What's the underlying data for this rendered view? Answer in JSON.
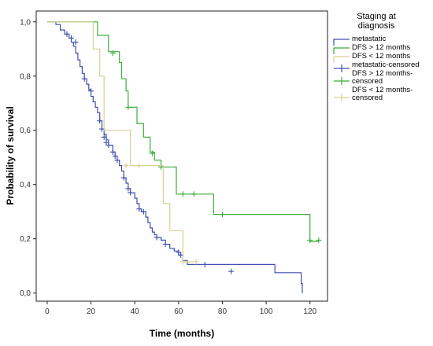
{
  "chart_data": {
    "type": "line",
    "subtype": "kaplan-meier step",
    "xlabel": "Time (months)",
    "ylabel": "Probability of survival",
    "xlim": [
      -5,
      128
    ],
    "ylim": [
      -0.03,
      1.04
    ],
    "x_ticks": [
      0,
      20,
      40,
      60,
      80,
      100,
      120
    ],
    "y_ticks": [
      0.0,
      0.2,
      0.4,
      0.6,
      0.8,
      1.0
    ],
    "y_tick_labels": [
      "0,0",
      "0,2",
      "0,4",
      "0,6",
      "0,8",
      "1,0"
    ],
    "grid": false,
    "legend_position": "top-right outside",
    "legend_title": "Staging at diagnosis",
    "legend_title_lines": [
      "Staging at",
      "diagnosis"
    ],
    "legend": [
      {
        "lines": [
          "metastatic"
        ],
        "color": "#3d4fb0",
        "kind": "line"
      },
      {
        "lines": [
          "DFS > 12 months"
        ],
        "color": "#3bae3b",
        "kind": "line"
      },
      {
        "lines": [
          "DFS < 12 months"
        ],
        "color": "#d7cf94",
        "kind": "line"
      },
      {
        "lines": [
          "metastatic-censored"
        ],
        "color": "#3d4fb0",
        "kind": "cross"
      },
      {
        "lines": [
          "DFS > 12 months-",
          "censored"
        ],
        "color": "#3bae3b",
        "kind": "cross"
      },
      {
        "lines": [
          "DFS < 12 months-",
          "censored"
        ],
        "color": "#d7cf94",
        "kind": "cross"
      }
    ],
    "series": [
      {
        "name": "metastatic",
        "color": "#3d4fb0",
        "steps": [
          [
            0,
            1.0
          ],
          [
            4,
            0.99
          ],
          [
            6,
            0.97
          ],
          [
            8,
            0.955
          ],
          [
            10,
            0.94
          ],
          [
            11,
            0.925
          ],
          [
            12,
            0.91
          ],
          [
            13,
            0.885
          ],
          [
            14,
            0.86
          ],
          [
            15,
            0.835
          ],
          [
            16,
            0.81
          ],
          [
            17,
            0.79
          ],
          [
            18,
            0.77
          ],
          [
            19,
            0.75
          ],
          [
            20,
            0.725
          ],
          [
            21,
            0.705
          ],
          [
            22,
            0.685
          ],
          [
            23,
            0.665
          ],
          [
            24,
            0.635
          ],
          [
            25,
            0.605
          ],
          [
            26,
            0.585
          ],
          [
            27,
            0.565
          ],
          [
            28,
            0.545
          ],
          [
            30,
            0.52
          ],
          [
            31,
            0.505
          ],
          [
            32,
            0.49
          ],
          [
            33,
            0.47
          ],
          [
            34,
            0.45
          ],
          [
            35,
            0.425
          ],
          [
            36,
            0.405
          ],
          [
            37,
            0.385
          ],
          [
            38,
            0.37
          ],
          [
            40,
            0.35
          ],
          [
            41,
            0.33
          ],
          [
            42,
            0.31
          ],
          [
            43,
            0.3
          ],
          [
            45,
            0.28
          ],
          [
            46,
            0.26
          ],
          [
            47,
            0.24
          ],
          [
            48,
            0.225
          ],
          [
            49,
            0.215
          ],
          [
            50,
            0.205
          ],
          [
            52,
            0.195
          ],
          [
            54,
            0.18
          ],
          [
            56,
            0.165
          ],
          [
            58,
            0.155
          ],
          [
            60,
            0.14
          ],
          [
            62,
            0.12
          ],
          [
            64,
            0.105
          ],
          [
            104,
            0.075
          ],
          [
            116,
            0.035
          ],
          [
            116.5,
            0.0
          ]
        ],
        "censored": [
          [
            9,
            0.955
          ],
          [
            11,
            0.94
          ],
          [
            13,
            0.925
          ],
          [
            17,
            0.79
          ],
          [
            20,
            0.745
          ],
          [
            24,
            0.635
          ],
          [
            25,
            0.605
          ],
          [
            26,
            0.575
          ],
          [
            27,
            0.555
          ],
          [
            28,
            0.545
          ],
          [
            30,
            0.52
          ],
          [
            31,
            0.505
          ],
          [
            32,
            0.49
          ],
          [
            35,
            0.425
          ],
          [
            37,
            0.385
          ],
          [
            38,
            0.37
          ],
          [
            42,
            0.31
          ],
          [
            44,
            0.3
          ],
          [
            50,
            0.205
          ],
          [
            54,
            0.18
          ],
          [
            60,
            0.15
          ],
          [
            61,
            0.14
          ],
          [
            72,
            0.105
          ],
          [
            84,
            0.08
          ]
        ]
      },
      {
        "name": "DFS > 12 months",
        "color": "#3bae3b",
        "steps": [
          [
            0,
            1.0
          ],
          [
            21,
            1.0
          ],
          [
            23,
            0.95
          ],
          [
            28,
            0.89
          ],
          [
            32,
            0.89
          ],
          [
            33,
            0.85
          ],
          [
            34,
            0.79
          ],
          [
            36,
            0.745
          ],
          [
            37,
            0.685
          ],
          [
            39,
            0.685
          ],
          [
            41,
            0.625
          ],
          [
            44,
            0.575
          ],
          [
            47,
            0.52
          ],
          [
            49,
            0.49
          ],
          [
            52,
            0.465
          ],
          [
            59,
            0.365
          ],
          [
            76,
            0.29
          ],
          [
            120,
            0.19
          ],
          [
            124,
            0.19
          ]
        ],
        "censored": [
          [
            30,
            0.885
          ],
          [
            37,
            0.685
          ],
          [
            48,
            0.515
          ],
          [
            52,
            0.465
          ],
          [
            62,
            0.365
          ],
          [
            67,
            0.365
          ],
          [
            80,
            0.29
          ],
          [
            120,
            0.195
          ],
          [
            124,
            0.195
          ]
        ]
      },
      {
        "name": "DFS < 12 months",
        "color": "#d7cf94",
        "steps": [
          [
            0,
            1.0
          ],
          [
            19,
            1.0
          ],
          [
            21,
            0.9
          ],
          [
            24,
            0.8
          ],
          [
            26,
            0.6
          ],
          [
            28,
            0.6
          ],
          [
            38,
            0.47
          ],
          [
            45,
            0.47
          ],
          [
            53,
            0.33
          ],
          [
            56,
            0.23
          ],
          [
            62,
            0.115
          ],
          [
            68,
            0.115
          ]
        ],
        "censored": [
          [
            36,
            0.47
          ],
          [
            42,
            0.47
          ],
          [
            62,
            0.115
          ],
          [
            68,
            0.115
          ]
        ]
      }
    ]
  }
}
